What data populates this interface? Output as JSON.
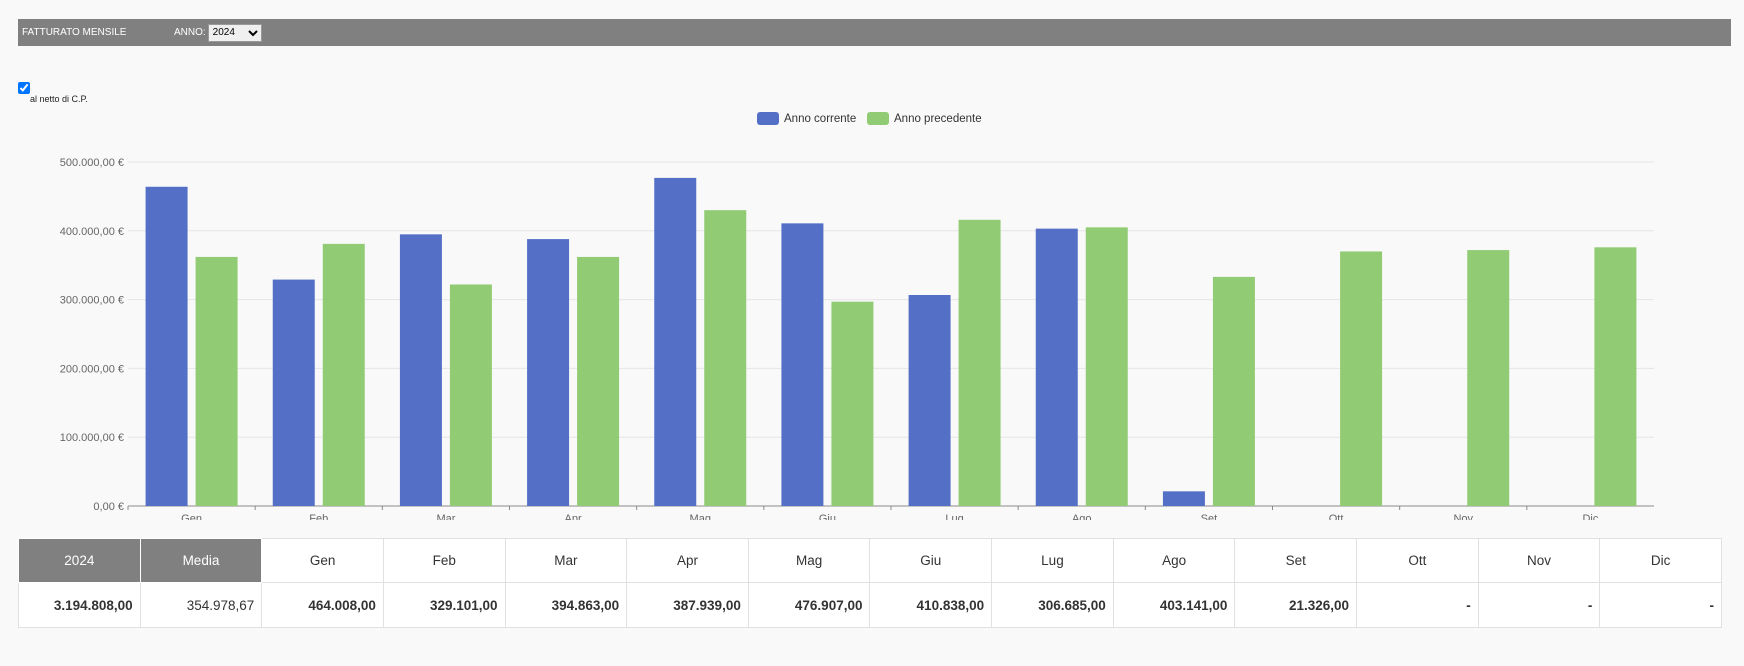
{
  "header": {
    "title": "FATTURATO MENSILE",
    "year_label": "ANNO:",
    "year_value": "2024"
  },
  "options": {
    "netto_label": "al netto di C.P."
  },
  "chart_data": {
    "type": "bar",
    "categories": [
      "Gen",
      "Feb",
      "Mar",
      "Apr",
      "Mag",
      "Giu",
      "Lug",
      "Ago",
      "Set",
      "Ott",
      "Nov",
      "Dic"
    ],
    "series": [
      {
        "name": "Anno corrente",
        "color": "#5470c6",
        "values": [
          464008,
          329101,
          394863,
          387939,
          476907,
          410838,
          306685,
          403141,
          21326,
          null,
          null,
          null
        ]
      },
      {
        "name": "Anno precedente",
        "color": "#91cc75",
        "values": [
          362000,
          381000,
          322000,
          362000,
          430000,
          297000,
          416000,
          405000,
          333000,
          370000,
          372000,
          376000
        ]
      }
    ],
    "ylim": [
      0,
      500000
    ],
    "yticks": [
      {
        "value": 0,
        "label": "0,00 €"
      },
      {
        "value": 100000,
        "label": "100.000,00 €"
      },
      {
        "value": 200000,
        "label": "200.000,00 €"
      },
      {
        "value": 300000,
        "label": "300.000,00 €"
      },
      {
        "value": 400000,
        "label": "400.000,00 €"
      },
      {
        "value": 500000,
        "label": "500.000,00 €"
      }
    ],
    "legend_position": "top-center",
    "grid": true
  },
  "summary": {
    "year_header": "2024",
    "avg_header": "Media",
    "months": [
      "Gen",
      "Feb",
      "Mar",
      "Apr",
      "Mag",
      "Giu",
      "Lug",
      "Ago",
      "Set",
      "Ott",
      "Nov",
      "Dic"
    ],
    "total": "3.194.808,00",
    "average": "354.978,67",
    "values": [
      "464.008,00",
      "329.101,00",
      "394.863,00",
      "387.939,00",
      "476.907,00",
      "410.838,00",
      "306.685,00",
      "403.141,00",
      "21.326,00",
      "-",
      "-",
      "-"
    ]
  }
}
